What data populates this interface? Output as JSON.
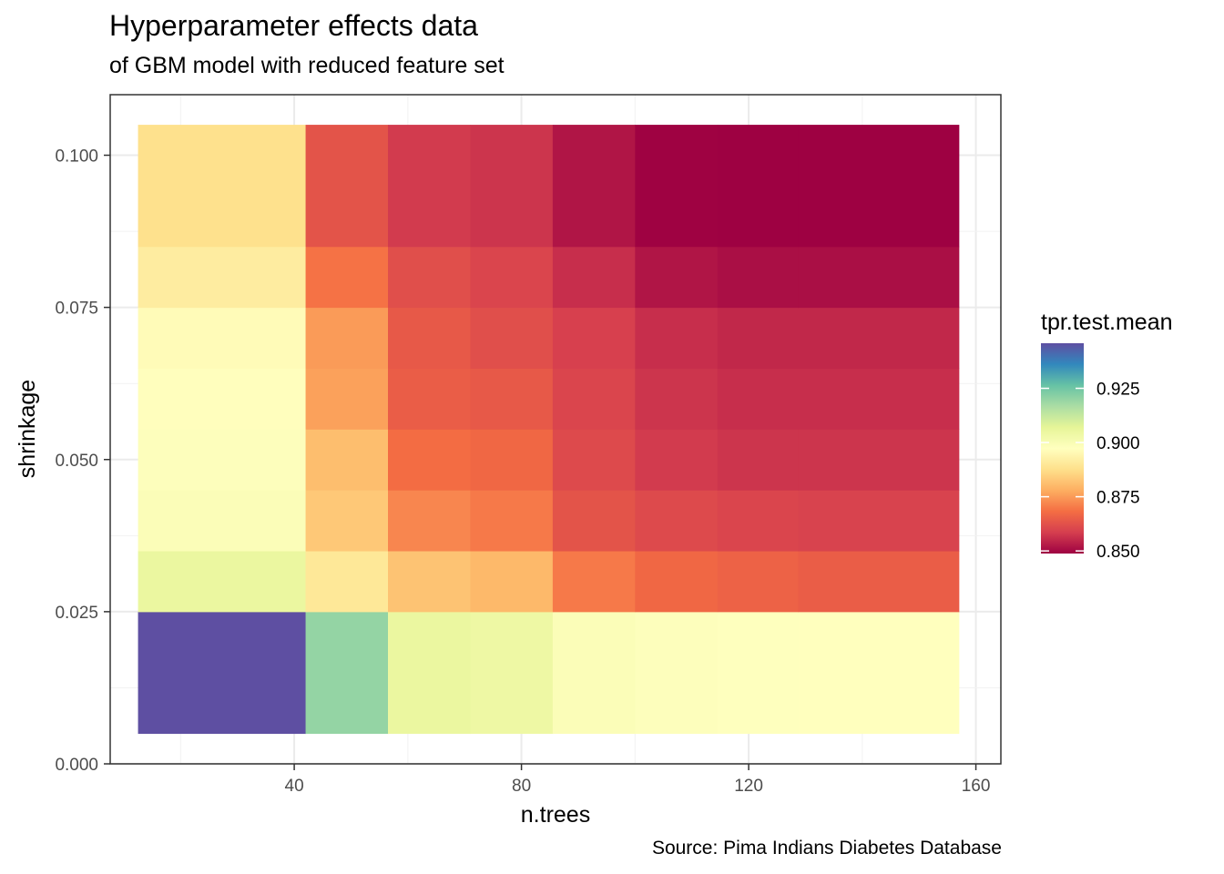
{
  "chart_data": {
    "type": "heatmap",
    "title": "Hyperparameter effects data",
    "subtitle": "of GBM model with reduced feature set",
    "caption": "Source: Pima Indians Diabetes Database",
    "xlabel": "n.trees",
    "ylabel": "shrinkage",
    "x_ticks": [
      40,
      80,
      120,
      160
    ],
    "x_tick_labels": [
      "40",
      "80",
      "120",
      "160"
    ],
    "y_ticks": [
      0,
      0.025,
      0.05,
      0.075,
      0.1
    ],
    "y_tick_labels": [
      "0.000",
      "0.025",
      "0.050",
      "0.075",
      "0.100"
    ],
    "xlim": [
      7.6,
      164.4
    ],
    "ylim": [
      0,
      0.1
    ],
    "grid": true,
    "legend": {
      "title": "tpr.test.mean",
      "position": "right",
      "ticks": [
        0.85,
        0.875,
        0.9,
        0.925
      ],
      "tick_labels": [
        "0.850",
        "0.875",
        "0.900",
        "0.925"
      ],
      "range": [
        0.8488,
        0.9458
      ],
      "palette": [
        "#9E0142",
        "#D53E4F",
        "#F46D43",
        "#FDAE61",
        "#FEE08B",
        "#FFFFBF",
        "#E6F598",
        "#ABDDA4",
        "#66C2A5",
        "#3288BD",
        "#5E4FA2"
      ]
    },
    "x_edges": [
      12.5,
      42.0,
      56.5,
      71.0,
      85.5,
      100.0,
      114.5,
      128.7,
      157.0
    ],
    "y_edges": [
      0.005,
      0.025,
      0.035,
      0.045,
      0.055,
      0.065,
      0.075,
      0.085,
      0.105
    ],
    "values": [
      [
        0.9458,
        0.92,
        0.905,
        0.904,
        0.899,
        0.898,
        0.8975,
        0.8972
      ],
      [
        0.905,
        0.89,
        0.882,
        0.88,
        0.87,
        0.867,
        0.866,
        0.865
      ],
      [
        0.899,
        0.883,
        0.872,
        0.87,
        0.863,
        0.861,
        0.86,
        0.8595
      ],
      [
        0.898,
        0.881,
        0.868,
        0.867,
        0.861,
        0.858,
        0.857,
        0.857
      ],
      [
        0.897,
        0.876,
        0.865,
        0.864,
        0.86,
        0.857,
        0.856,
        0.856
      ],
      [
        0.896,
        0.875,
        0.864,
        0.862,
        0.859,
        0.856,
        0.855,
        0.855
      ],
      [
        0.8915,
        0.869,
        0.862,
        0.86,
        0.856,
        0.852,
        0.851,
        0.851
      ],
      [
        0.888,
        0.863,
        0.858,
        0.857,
        0.852,
        0.849,
        0.8488,
        0.8488
      ]
    ]
  }
}
